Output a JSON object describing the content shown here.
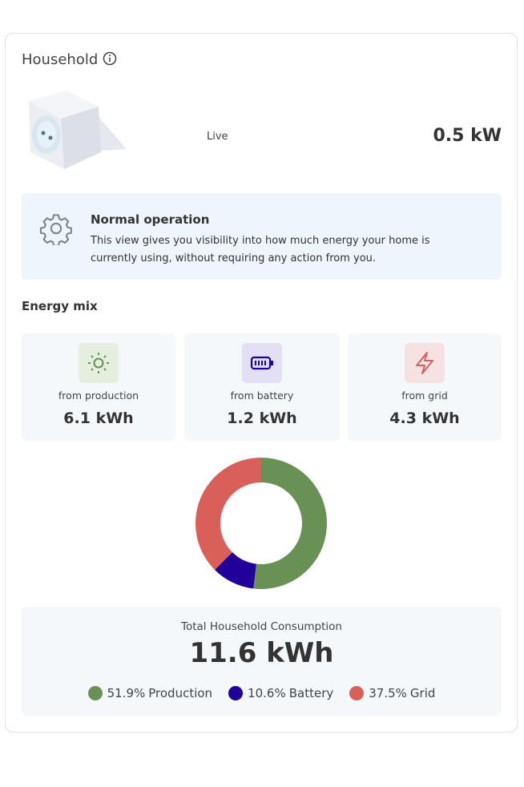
{
  "header": {
    "title": "Household"
  },
  "live": {
    "label": "Live",
    "power": "0.5 kW"
  },
  "status": {
    "title": "Normal operation",
    "text": "This view gives you visibility into how much energy your home is currently using, without requiring any action from you."
  },
  "energy_mix": {
    "title": "Energy mix",
    "cards": [
      {
        "label": "from production",
        "value": "6.1 kWh"
      },
      {
        "label": "from battery",
        "value": "1.2 kWh"
      },
      {
        "label": "from grid",
        "value": "4.3 kWh"
      }
    ]
  },
  "chart_data": {
    "type": "donut",
    "title": "Total Household Consumption",
    "total": "11.6 kWh",
    "categories": [
      "Production",
      "Battery",
      "Grid"
    ],
    "values": [
      51.9,
      10.6,
      37.5
    ],
    "value_labels": [
      "51.9%",
      "10.6%",
      "37.5%"
    ],
    "colors": [
      "#6a9155",
      "#22009a",
      "#d95f5a"
    ]
  }
}
